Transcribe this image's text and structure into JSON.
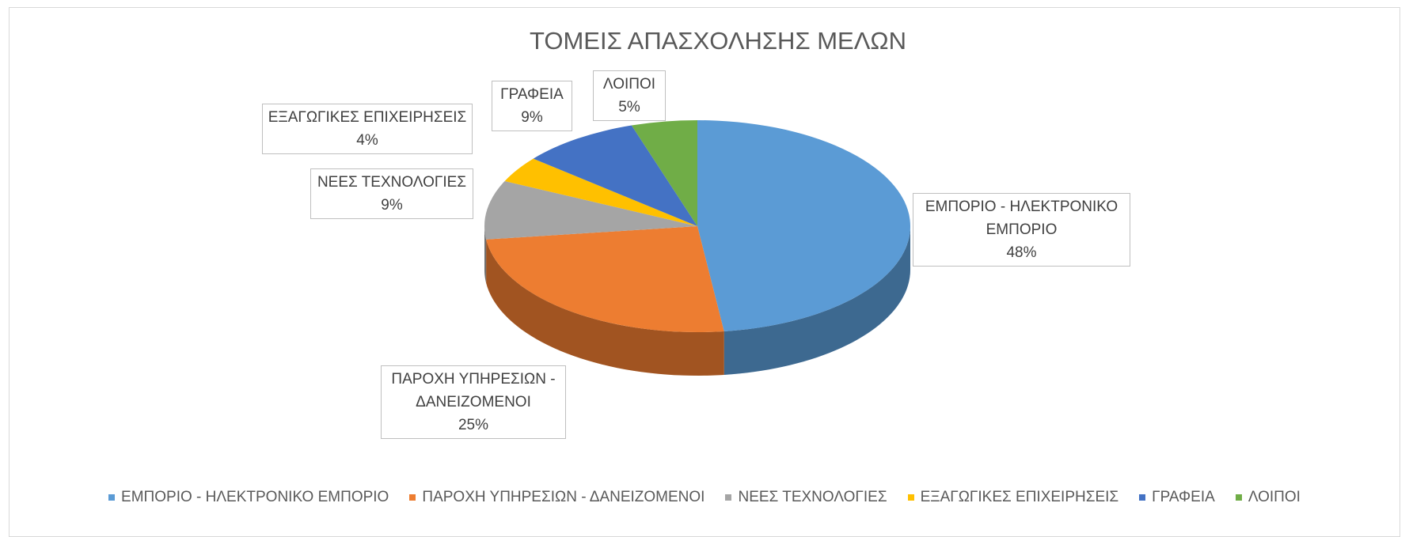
{
  "chart_data": {
    "type": "pie",
    "title": "ΤΟΜΕΙΣ ΑΠΑΣΧΟΛΗΣΗΣ ΜΕΛΩΝ",
    "categories": [
      "ΕΜΠΟΡΙΟ - ΗΛΕΚΤΡΟΝΙΚΟ ΕΜΠΟΡΙΟ",
      "ΠΑΡΟΧΗ ΥΠΗΡΕΣΙΩΝ - ΔΑΝΕΙΖΟΜΕΝΟΙ",
      "ΝΕΕΣ ΤΕΧΝΟΛΟΓΙΕΣ",
      "ΕΞΑΓΩΓΙΚΕΣ ΕΠΙΧΕΙΡΗΣΕΙΣ",
      "ΓΡΑΦΕΙΑ",
      "ΛΟΙΠΟΙ"
    ],
    "values": [
      48,
      25,
      9,
      4,
      9,
      5
    ],
    "value_labels": [
      "48%",
      "25%",
      "9%",
      "4%",
      "9%",
      "5%"
    ],
    "colors": [
      "#5b9bd5",
      "#ed7d31",
      "#a5a5a5",
      "#ffc000",
      "#4472c4",
      "#70ad47"
    ],
    "legend": "bottom"
  }
}
